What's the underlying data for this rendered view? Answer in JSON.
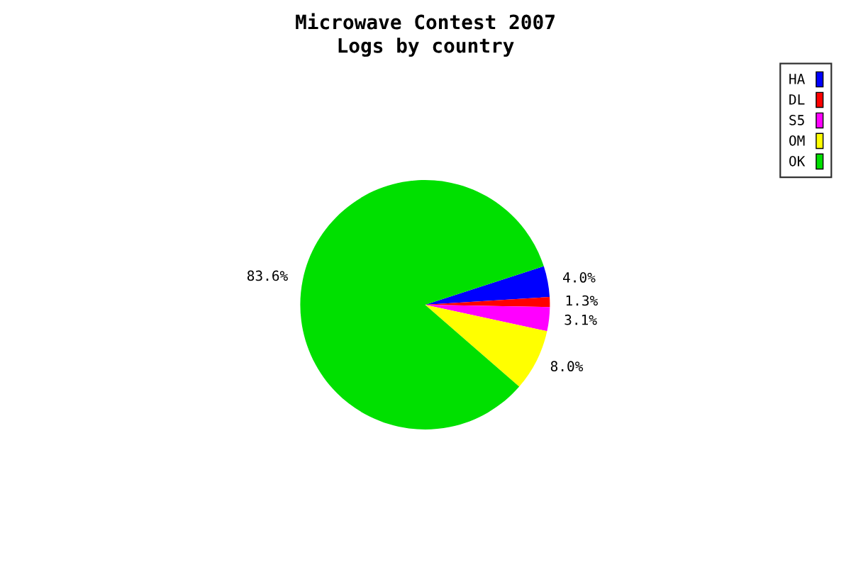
{
  "chart_data": {
    "type": "pie",
    "title": "Microwave Contest 2007\nLogs by country",
    "categories": [
      "HA",
      "DL",
      "S5",
      "OM",
      "OK"
    ],
    "values": [
      4.0,
      1.3,
      3.1,
      8.0,
      83.6
    ],
    "colors": [
      "#0000ff",
      "#ff0000",
      "#ff00ff",
      "#ffff00",
      "#00e000"
    ],
    "value_labels": [
      "4.0%",
      "1.3%",
      "3.1%",
      "8.0%",
      "83.6%"
    ],
    "legend": "top right"
  }
}
